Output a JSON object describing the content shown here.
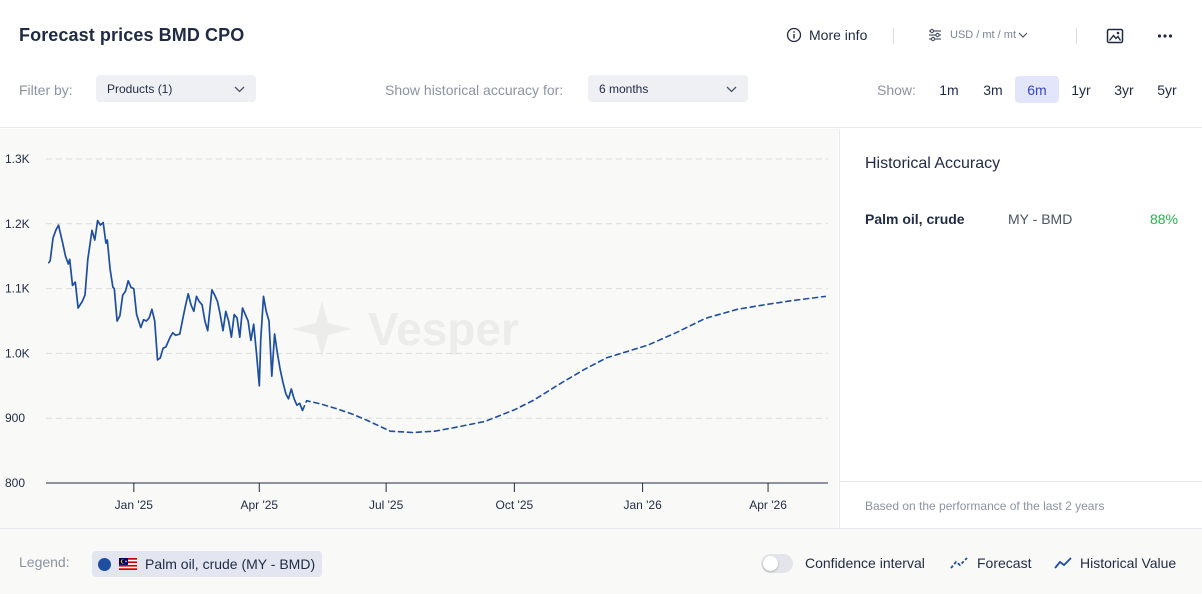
{
  "header": {
    "title": "Forecast prices BMD CPO",
    "more_info": "More info",
    "unit": "USD / mt / mt"
  },
  "filters": {
    "filter_label": "Filter by:",
    "products_value": "Products (1)",
    "accuracy_label": "Show historical accuracy for:",
    "accuracy_value": "6 months",
    "show_label": "Show:",
    "ranges": [
      "1m",
      "3m",
      "6m",
      "1yr",
      "3yr",
      "5yr"
    ],
    "active_range": "6m"
  },
  "accuracy_panel": {
    "title": "Historical Accuracy",
    "product": "Palm oil, crude",
    "market": "MY - BMD",
    "value": "88%",
    "note": "Based on the performance of the last 2 years"
  },
  "legend": {
    "label": "Legend:",
    "series_chip": "Palm oil, crude (MY - BMD)",
    "confidence": "Confidence interval",
    "forecast": "Forecast",
    "historical": "Historical Value"
  },
  "colors": {
    "series": "#1d4ea0",
    "accuracy_good": "#22b34b",
    "active_range_bg": "#e3e6fb"
  },
  "chart_data": {
    "type": "line",
    "watermark": "Vesper",
    "y_ticks": [
      800,
      900,
      1000,
      1100,
      1200,
      1300
    ],
    "y_tick_labels": [
      "800",
      "900",
      "1.0K",
      "1.1K",
      "1.2K",
      "1.3K"
    ],
    "ylim": [
      800,
      1300
    ],
    "x_ticks": [
      "2025-01-01",
      "2025-04-01",
      "2025-07-01",
      "2025-10-01",
      "2026-01-01",
      "2026-04-01"
    ],
    "x_tick_labels": [
      "Jan '25",
      "Apr '25",
      "Jul '25",
      "Oct '25",
      "Jan '26",
      "Apr '26"
    ],
    "xlim": [
      "2024-10-30",
      "2026-05-14"
    ],
    "series": [
      {
        "name": "Historical Value",
        "style": "solid",
        "points": [
          [
            "2024-11-01",
            1140
          ],
          [
            "2024-11-02",
            1143
          ],
          [
            "2024-11-04",
            1178
          ],
          [
            "2024-11-06",
            1190
          ],
          [
            "2024-11-08",
            1198
          ],
          [
            "2024-11-11",
            1170
          ],
          [
            "2024-11-13",
            1150
          ],
          [
            "2024-11-15",
            1138
          ],
          [
            "2024-11-16",
            1145
          ],
          [
            "2024-11-18",
            1105
          ],
          [
            "2024-11-20",
            1110
          ],
          [
            "2024-11-22",
            1070
          ],
          [
            "2024-11-25",
            1080
          ],
          [
            "2024-11-27",
            1090
          ],
          [
            "2024-11-29",
            1145
          ],
          [
            "2024-12-02",
            1190
          ],
          [
            "2024-12-04",
            1175
          ],
          [
            "2024-12-06",
            1205
          ],
          [
            "2024-12-08",
            1198
          ],
          [
            "2024-12-10",
            1202
          ],
          [
            "2024-12-12",
            1170
          ],
          [
            "2024-12-13",
            1175
          ],
          [
            "2024-12-15",
            1130
          ],
          [
            "2024-12-17",
            1102
          ],
          [
            "2024-12-18",
            1100
          ],
          [
            "2024-12-20",
            1050
          ],
          [
            "2024-12-22",
            1058
          ],
          [
            "2024-12-24",
            1090
          ],
          [
            "2024-12-26",
            1096
          ],
          [
            "2024-12-28",
            1112
          ],
          [
            "2024-12-30",
            1102
          ],
          [
            "2025-01-01",
            1100
          ],
          [
            "2025-01-03",
            1060
          ],
          [
            "2025-01-06",
            1040
          ],
          [
            "2025-01-08",
            1052
          ],
          [
            "2025-01-10",
            1050
          ],
          [
            "2025-01-12",
            1055
          ],
          [
            "2025-01-14",
            1068
          ],
          [
            "2025-01-16",
            1050
          ],
          [
            "2025-01-18",
            990
          ],
          [
            "2025-01-20",
            993
          ],
          [
            "2025-01-22",
            1008
          ],
          [
            "2025-01-24",
            1010
          ],
          [
            "2025-01-27",
            1025
          ],
          [
            "2025-01-29",
            1032
          ],
          [
            "2025-01-31",
            1028
          ],
          [
            "2025-02-03",
            1030
          ],
          [
            "2025-02-05",
            1052
          ],
          [
            "2025-02-07",
            1073
          ],
          [
            "2025-02-09",
            1092
          ],
          [
            "2025-02-11",
            1075
          ],
          [
            "2025-02-13",
            1065
          ],
          [
            "2025-02-15",
            1088
          ],
          [
            "2025-02-17",
            1080
          ],
          [
            "2025-02-19",
            1075
          ],
          [
            "2025-02-21",
            1050
          ],
          [
            "2025-02-23",
            1035
          ],
          [
            "2025-02-26",
            1098
          ],
          [
            "2025-02-28",
            1090
          ],
          [
            "2025-03-02",
            1080
          ],
          [
            "2025-03-04",
            1060
          ],
          [
            "2025-03-06",
            1035
          ],
          [
            "2025-03-08",
            1065
          ],
          [
            "2025-03-10",
            1050
          ],
          [
            "2025-03-12",
            1025
          ],
          [
            "2025-03-14",
            1060
          ],
          [
            "2025-03-16",
            1055
          ],
          [
            "2025-03-18",
            1025
          ],
          [
            "2025-03-20",
            1070
          ],
          [
            "2025-03-22",
            1060
          ],
          [
            "2025-03-24",
            1050
          ],
          [
            "2025-03-26",
            1020
          ],
          [
            "2025-03-28",
            1045
          ],
          [
            "2025-03-30",
            1000
          ],
          [
            "2025-04-01",
            950
          ],
          [
            "2025-04-02",
            1020
          ],
          [
            "2025-04-04",
            1088
          ],
          [
            "2025-04-06",
            1065
          ],
          [
            "2025-04-08",
            1050
          ],
          [
            "2025-04-10",
            965
          ],
          [
            "2025-04-12",
            1030
          ],
          [
            "2025-04-14",
            1000
          ],
          [
            "2025-04-16",
            975
          ],
          [
            "2025-04-18",
            955
          ],
          [
            "2025-04-20",
            938
          ],
          [
            "2025-04-22",
            930
          ],
          [
            "2025-04-24",
            945
          ],
          [
            "2025-04-26",
            930
          ],
          [
            "2025-04-28",
            920
          ],
          [
            "2025-04-30",
            923
          ],
          [
            "2025-05-02",
            912
          ]
        ]
      },
      {
        "name": "Forecast",
        "style": "dashed",
        "points": [
          [
            "2025-05-02",
            912
          ],
          [
            "2025-05-05",
            927
          ],
          [
            "2025-05-15",
            922
          ],
          [
            "2025-05-26",
            915
          ],
          [
            "2025-06-06",
            907
          ],
          [
            "2025-06-17",
            897
          ],
          [
            "2025-06-27",
            887
          ],
          [
            "2025-07-04",
            880
          ],
          [
            "2025-07-20",
            878
          ],
          [
            "2025-08-05",
            880
          ],
          [
            "2025-08-20",
            886
          ],
          [
            "2025-09-10",
            895
          ],
          [
            "2025-10-01",
            913
          ],
          [
            "2025-10-15",
            928
          ],
          [
            "2025-11-01",
            951
          ],
          [
            "2025-11-20",
            975
          ],
          [
            "2025-12-06",
            993
          ],
          [
            "2026-01-05",
            1013
          ],
          [
            "2026-01-25",
            1032
          ],
          [
            "2026-02-15",
            1054
          ],
          [
            "2026-03-10",
            1068
          ],
          [
            "2026-04-01",
            1076
          ],
          [
            "2026-04-20",
            1082
          ],
          [
            "2026-05-12",
            1088
          ]
        ]
      }
    ]
  }
}
